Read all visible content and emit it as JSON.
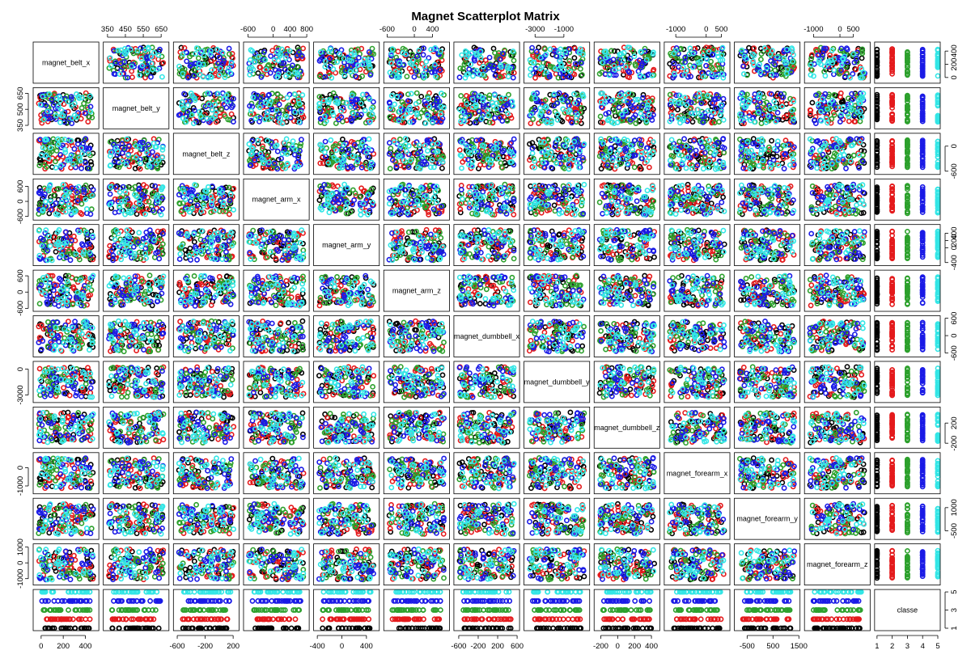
{
  "chart_data": {
    "type": "scatter",
    "title": "Magnet Scatterplot Matrix",
    "variables": [
      "magnet_belt_x",
      "magnet_belt_y",
      "magnet_belt_z",
      "magnet_arm_x",
      "magnet_arm_y",
      "magnet_arm_z",
      "magnet_dumbbell_x",
      "magnet_dumbbell_y",
      "magnet_dumbbell_z",
      "magnet_forearm_x",
      "magnet_forearm_y",
      "magnet_forearm_z",
      "classe"
    ],
    "ranges": [
      [
        -50,
        500
      ],
      [
        340,
        680
      ],
      [
        -620,
        250
      ],
      [
        -650,
        800
      ],
      [
        -420,
        570
      ],
      [
        -620,
        720
      ],
      [
        -650,
        600
      ],
      [
        -3600,
        620
      ],
      [
        -250,
        470
      ],
      [
        -1300,
        700
      ],
      [
        -900,
        1450
      ],
      [
        -1250,
        1050
      ],
      [
        1,
        5
      ]
    ],
    "top_axis_ticks": [
      {
        "col": 1,
        "labels": [
          "350",
          "450",
          "550",
          "650"
        ],
        "values": [
          350,
          450,
          550,
          650
        ]
      },
      {
        "col": 3,
        "labels": [
          "-600",
          "0",
          "400",
          "800"
        ],
        "values": [
          -600,
          0,
          400,
          800
        ]
      },
      {
        "col": 5,
        "labels": [
          "-600",
          "0",
          "400"
        ],
        "values": [
          -600,
          0,
          400
        ]
      },
      {
        "col": 7,
        "labels": [
          "-3000",
          "-1000"
        ],
        "values": [
          -3000,
          -1000
        ]
      },
      {
        "col": 9,
        "labels": [
          "-1000",
          "0",
          "500"
        ],
        "values": [
          -1000,
          0,
          500
        ]
      },
      {
        "col": 11,
        "labels": [
          "-1000",
          "0",
          "500"
        ],
        "values": [
          -1000,
          0,
          500
        ]
      }
    ],
    "bottom_axis_ticks": [
      {
        "col": 0,
        "labels": [
          "0",
          "200",
          "400"
        ],
        "values": [
          0,
          200,
          400
        ]
      },
      {
        "col": 2,
        "labels": [
          "-600",
          "-200",
          "200"
        ],
        "values": [
          -600,
          -200,
          200
        ]
      },
      {
        "col": 4,
        "labels": [
          "-400",
          "0",
          "400"
        ],
        "values": [
          -400,
          0,
          400
        ]
      },
      {
        "col": 6,
        "labels": [
          "-600",
          "-200",
          "200",
          "600"
        ],
        "values": [
          -600,
          -200,
          200,
          600
        ]
      },
      {
        "col": 8,
        "labels": [
          "-200",
          "0",
          "200",
          "400"
        ],
        "values": [
          -200,
          0,
          200,
          400
        ]
      },
      {
        "col": 10,
        "labels": [
          "-500",
          "500",
          "1500"
        ],
        "values": [
          -500,
          500,
          1500
        ]
      },
      {
        "col": 12,
        "labels": [
          "1",
          "2",
          "3",
          "4",
          "5"
        ],
        "values": [
          1,
          2,
          3,
          4,
          5
        ]
      }
    ],
    "left_axis_ticks": [
      {
        "row": 1,
        "labels": [
          "350",
          "500",
          "650"
        ],
        "values": [
          350,
          500,
          650
        ]
      },
      {
        "row": 3,
        "labels": [
          "-600",
          "0",
          "600"
        ],
        "values": [
          -600,
          0,
          600
        ]
      },
      {
        "row": 5,
        "labels": [
          "-600",
          "0",
          "600"
        ],
        "values": [
          -600,
          0,
          600
        ]
      },
      {
        "row": 7,
        "labels": [
          "-3000",
          "0"
        ],
        "values": [
          -3000,
          0
        ]
      },
      {
        "row": 9,
        "labels": [
          "-1000",
          "0"
        ],
        "values": [
          -1000,
          0
        ]
      },
      {
        "row": 11,
        "labels": [
          "-1000",
          "0",
          "1000"
        ],
        "values": [
          -1000,
          0,
          1000
        ]
      }
    ],
    "right_axis_ticks": [
      {
        "row": 0,
        "labels": [
          "0",
          "200",
          "400"
        ],
        "values": [
          0,
          200,
          400
        ]
      },
      {
        "row": 2,
        "labels": [
          "-600",
          "0"
        ],
        "values": [
          -600,
          0
        ]
      },
      {
        "row": 4,
        "labels": [
          "-400",
          "0",
          "200",
          "400"
        ],
        "values": [
          -400,
          0,
          200,
          400
        ]
      },
      {
        "row": 6,
        "labels": [
          "-600",
          "0",
          "600"
        ],
        "values": [
          -600,
          0,
          600
        ]
      },
      {
        "row": 8,
        "labels": [
          "-200",
          "200"
        ],
        "values": [
          -200,
          200
        ]
      },
      {
        "row": 10,
        "labels": [
          "-500",
          "1000"
        ],
        "values": [
          -500,
          1000
        ]
      },
      {
        "row": 12,
        "labels": [
          "1",
          "3",
          "5"
        ],
        "values": [
          1,
          3,
          5
        ]
      }
    ],
    "class_colors": [
      "#000000",
      "#e41a1c",
      "#2ca02c",
      "#1a1ae6",
      "#33e6e6"
    ],
    "class_values": [
      1,
      2,
      3,
      4,
      5
    ],
    "marker": "open-circle",
    "grid": false,
    "legend": "none"
  }
}
